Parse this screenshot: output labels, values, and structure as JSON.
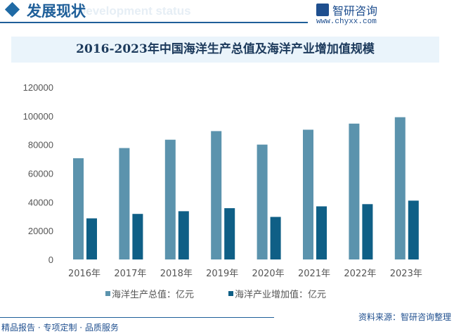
{
  "header": {
    "title": "发展现状",
    "subtitle_en": "Development status",
    "logo_text": "智研咨询",
    "url": "www.chyxx.com"
  },
  "footer": {
    "slogan": "精品报告 · 专项定制 · 品质服务",
    "source": "资料来源：智研咨询整理"
  },
  "colors": {
    "series1": "#5b93ad",
    "series2": "#0f5f86",
    "accent": "#1f5f99"
  },
  "chart_data": {
    "type": "bar",
    "title": "2016-2023年中国海洋生产总值及海洋产业增加值规模",
    "categories": [
      "2016年",
      "2017年",
      "2018年",
      "2019年",
      "2020年",
      "2021年",
      "2022年",
      "2023年"
    ],
    "series": [
      {
        "name": "海洋生产总值：亿元",
        "values": [
          70507,
          77611,
          83415,
          89415,
          80010,
          90385,
          94628,
          99097
        ]
      },
      {
        "name": "海洋产业增加值：亿元",
        "values": [
          28636,
          31735,
          33609,
          35724,
          29641,
          37000,
          38542,
          40978
        ]
      }
    ],
    "yticks": [
      0,
      20000,
      40000,
      60000,
      80000,
      100000,
      120000
    ],
    "ylim": [
      0,
      120000
    ],
    "grid": false,
    "legend": "bottom"
  }
}
